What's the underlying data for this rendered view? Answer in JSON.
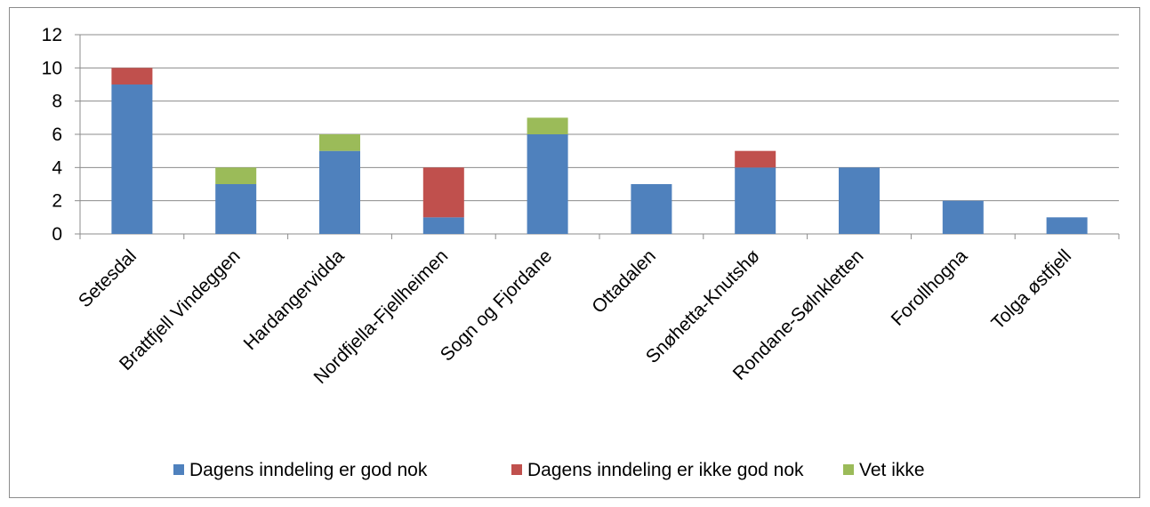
{
  "chart_data": {
    "type": "bar",
    "stacked": true,
    "title": "",
    "xlabel": "",
    "ylabel": "",
    "ylim": [
      0,
      12
    ],
    "yticks": [
      "0",
      "2",
      "4",
      "6",
      "8",
      "10",
      "12"
    ],
    "grid": true,
    "legend_position": "bottom",
    "categories": [
      "Setesdal",
      "Brattfjell Vindeggen",
      "Hardangervidda",
      "Nordfjella-Fjellheimen",
      "Sogn og Fjordane",
      "Ottadalen",
      "Snøhetta-Knutshø",
      "Rondane-Sølnkletten",
      "Forollhogna",
      "Tolga østfjell"
    ],
    "series": [
      {
        "name": "Dagens inndeling er god nok",
        "color": "#4f81bd",
        "values": [
          9,
          3,
          5,
          1,
          6,
          3,
          4,
          4,
          2,
          1
        ]
      },
      {
        "name": "Dagens inndeling er ikke god nok",
        "color": "#c0504d",
        "values": [
          1,
          0,
          0,
          3,
          0,
          0,
          1,
          0,
          0,
          0
        ]
      },
      {
        "name": "Vet ikke",
        "color": "#9bbb59",
        "values": [
          0,
          1,
          1,
          0,
          1,
          0,
          0,
          0,
          0,
          0
        ]
      }
    ]
  }
}
